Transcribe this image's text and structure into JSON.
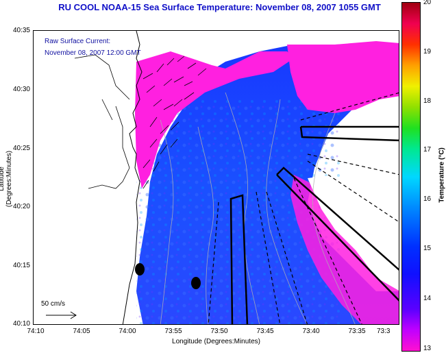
{
  "title": "RU COOL  NOAA-15  Sea Surface Temperature:  November 08, 2007 1055 GMT",
  "current_label_line1": "Raw Surface Current:",
  "current_label_line2": "November 08, 2007 12:00 GMT",
  "scale_label": "50 cm/s",
  "xlabel": "Longitude (Degrees:Minutes)",
  "ylabel": "Latitude (Degrees:Minutes)",
  "x_ticks": [
    "74:10",
    "74:05",
    "74:00",
    "73:55",
    "73:50",
    "73:45",
    "73:40",
    "73:35",
    "73:3"
  ],
  "y_ticks": [
    "40:35",
    "40:30",
    "40:25",
    "40:20",
    "40:15",
    "40:10"
  ],
  "colorbar": {
    "label": "Temperature (°C)",
    "min": 13,
    "max": 20,
    "ticks": [
      "20",
      "19",
      "18",
      "17",
      "16",
      "15",
      "14",
      "13"
    ]
  },
  "colors": {
    "land": "#ffffff",
    "cool_water": "#1a40ff",
    "warm_water": "#ff20e0",
    "title": "#1010c8"
  }
}
